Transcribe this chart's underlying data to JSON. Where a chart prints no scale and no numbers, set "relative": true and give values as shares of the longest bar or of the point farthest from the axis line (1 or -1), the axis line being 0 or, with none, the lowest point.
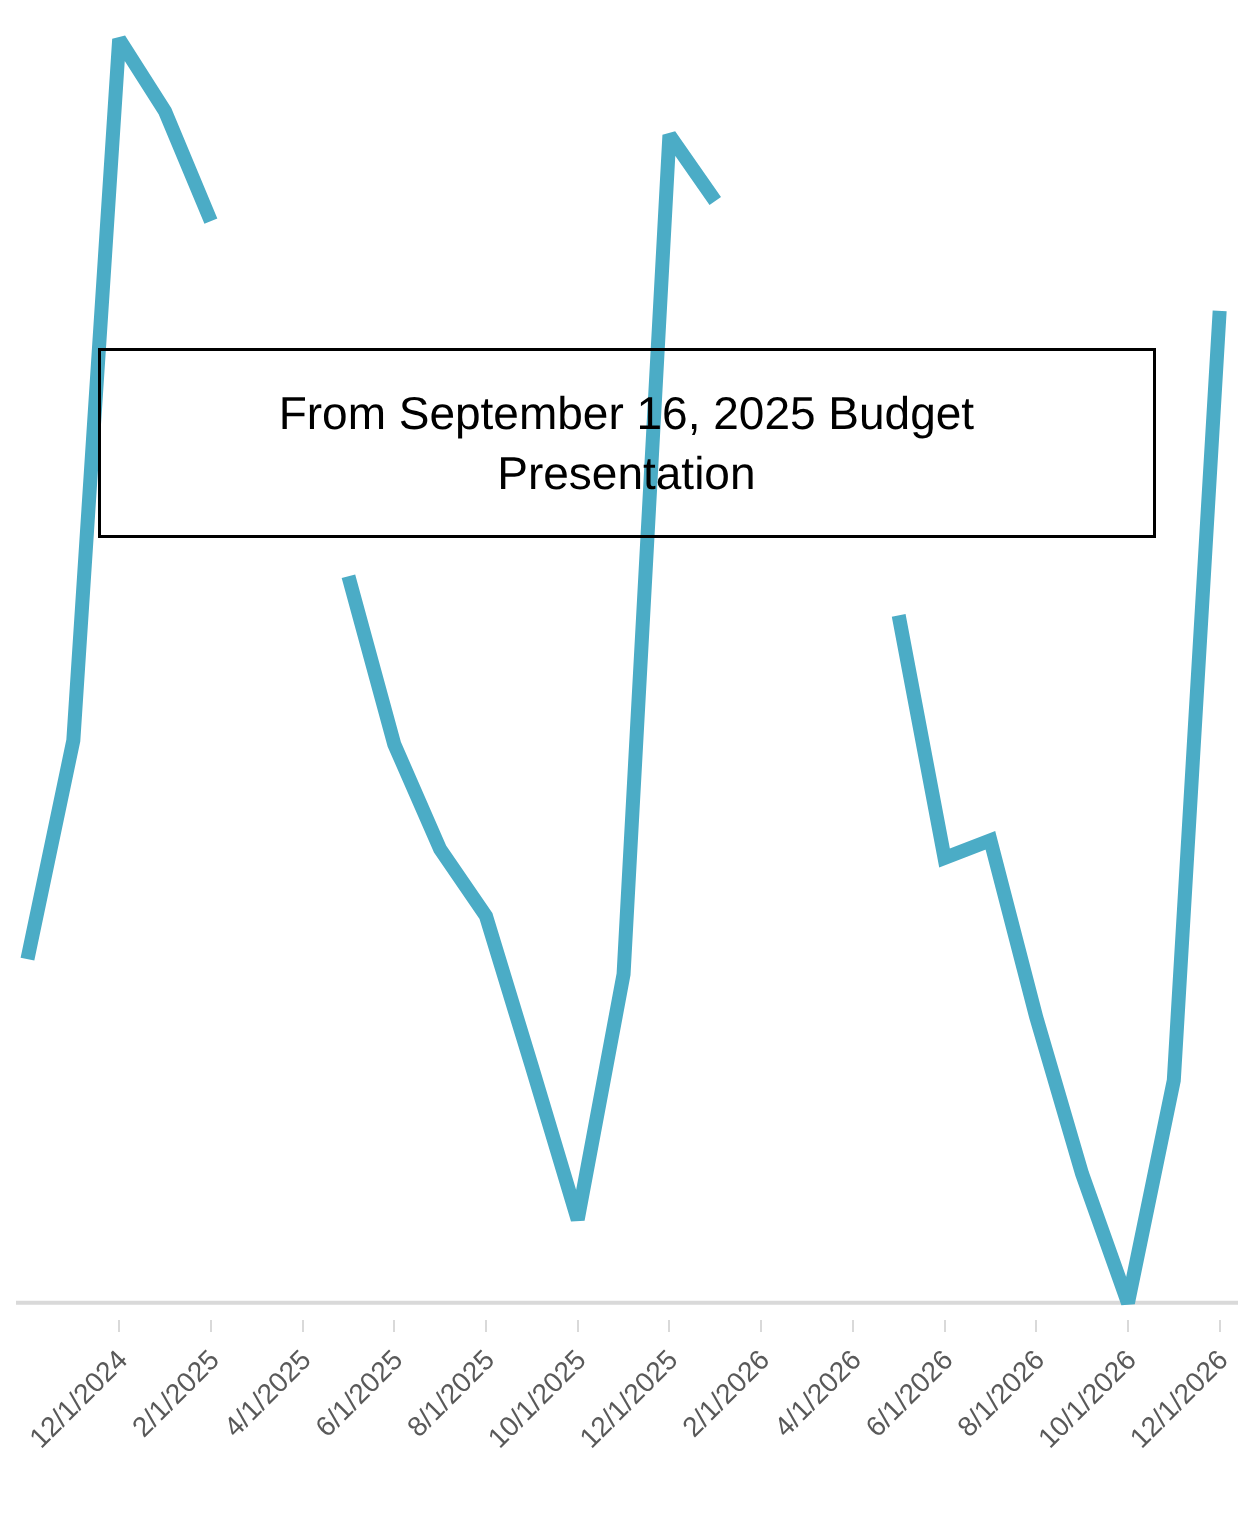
{
  "chart_data": {
    "type": "line",
    "relative": true,
    "categories": [
      null,
      null,
      "12/1/2024",
      null,
      "2/1/2025",
      null,
      "4/1/2025",
      null,
      "6/1/2025",
      null,
      "8/1/2025",
      null,
      "10/1/2025",
      null,
      "12/1/2025",
      null,
      "2/1/2026",
      null,
      "4/1/2026",
      null,
      "6/1/2026",
      null,
      "8/1/2026",
      null,
      "10/1/2026",
      null,
      "12/1/2026"
    ],
    "series": [
      {
        "color": "#4bacc6",
        "values": [
          0.272,
          0.445,
          1,
          0.943,
          0.856,
          null,
          null,
          0.575,
          0.442,
          0.359,
          0.306,
          0.187,
          0.066,
          0.26,
          0.924,
          0.872,
          null,
          null,
          null,
          0.544,
          0.352,
          0.366,
          0.226,
          0.102,
          0,
          0.176,
          0.785
        ]
      }
    ],
    "annotations": [
      "From September 16, 2025 Budget Presentation"
    ],
    "marker": "none",
    "line_style": "solid"
  }
}
